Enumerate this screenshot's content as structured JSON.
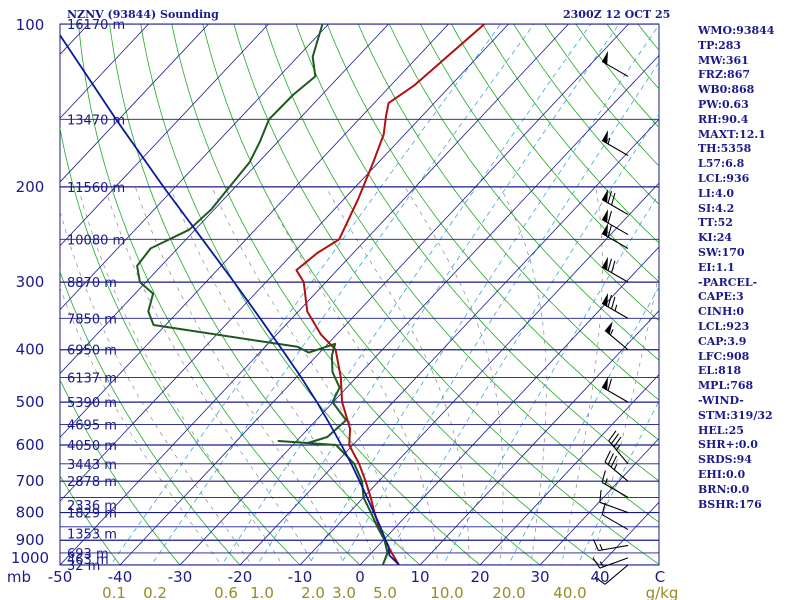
{
  "header": {
    "station": "NZNV (93844) Sounding",
    "time": "2300Z 12 OCT 25"
  },
  "stats": [
    "WMO:93844",
    "TP:283",
    "MW:361",
    "FRZ:867",
    "WB0:868",
    "PW:0.63",
    "RH:90.4",
    "MAXT:12.1",
    "TH:5358",
    "L57:6.8",
    "LCL:936",
    "LI:4.0",
    "SI:4.2",
    "TT:52",
    "KI:24",
    "SW:170",
    "EI:1.1",
    "-PARCEL-",
    "CAPE:3",
    "CINH:0",
    "LCL:923",
    "CAP:3.9",
    "LFC:908",
    "EL:818",
    "MPL:768",
    "-WIND-",
    "STM:319/32",
    "HEL:25",
    "SHR+:0.0",
    "SRDS:94",
    "EHI:0.0",
    "BRN:0.0",
    "BSHR:176"
  ],
  "colors": {
    "isobar": "#1a1a8c",
    "isotherm": "#1a1a8c",
    "dry_adiabat": "#22aa22",
    "moist_adiabat": "#8a8a8a",
    "mixing_ratio": "#3aa6d8",
    "temperature": "#b01010",
    "dewpoint": "#1e5a1e",
    "parcel": "#0a1a9c",
    "label_pressure": "#1a1a8c",
    "label_ticks": "#1a1a8c",
    "label_mixratio": "#9a8a20",
    "barb": "#000000"
  },
  "chart_data": {
    "type": "line",
    "title": "NZNV (93844) Sounding",
    "subtitle": "2300Z 12 OCT 25",
    "xlabel": "C",
    "ylabel": "mb",
    "xlim": [
      -50,
      50
    ],
    "ylim": [
      1000,
      100
    ],
    "y_scale": "log",
    "pressure_ticks": [
      100,
      200,
      300,
      400,
      500,
      600,
      700,
      800,
      900,
      1000
    ],
    "temperature_ticks": [
      "-50",
      "-40",
      "-30",
      "-20",
      "-10",
      "0",
      "10",
      "20",
      "30",
      "40",
      "C"
    ],
    "mixing_ratio_labels": [
      "0.1",
      "0.2",
      "0.6",
      "1.0",
      "2.0",
      "3.0",
      "5.0",
      "10.0",
      "20.0",
      "40.0",
      "g/kg"
    ],
    "mixing_ratio_values": [
      0.1,
      0.2,
      0.6,
      1.0,
      2.0,
      3.0,
      5.0,
      10.0,
      20.0,
      40.0
    ],
    "height_labels": [
      {
        "p": 1000,
        "text": "32 m"
      },
      {
        "p": 975,
        "text": "463 m"
      },
      {
        "p": 950,
        "text": "693 m"
      },
      {
        "p": 875,
        "text": "1353 m"
      },
      {
        "p": 800,
        "text": "1829 m"
      },
      {
        "p": 775,
        "text": "2336 m"
      },
      {
        "p": 700,
        "text": "2878 m"
      },
      {
        "p": 650,
        "text": "3443 m"
      },
      {
        "p": 600,
        "text": "4050 m"
      },
      {
        "p": 550,
        "text": "4695 m"
      },
      {
        "p": 500,
        "text": "5390 m"
      },
      {
        "p": 450,
        "text": "6137 m"
      },
      {
        "p": 400,
        "text": "6950 m"
      },
      {
        "p": 350,
        "text": "7850 m"
      },
      {
        "p": 300,
        "text": "8870 m"
      },
      {
        "p": 250,
        "text": "10080 m"
      },
      {
        "p": 200,
        "text": "11560 m"
      },
      {
        "p": 150,
        "text": "13470 m"
      },
      {
        "p": 100,
        "text": "16170 m"
      }
    ],
    "series": [
      {
        "name": "Temperature",
        "color": "#b01010",
        "points": [
          [
            1000,
            6.5
          ],
          [
            950,
            3.4
          ],
          [
            900,
            0.3
          ],
          [
            850,
            -2.8
          ],
          [
            800,
            -5.8
          ],
          [
            750,
            -8.8
          ],
          [
            700,
            -12.2
          ],
          [
            650,
            -16.0
          ],
          [
            600,
            -20.6
          ],
          [
            560,
            -23.0
          ],
          [
            500,
            -28.5
          ],
          [
            450,
            -32.6
          ],
          [
            400,
            -37.8
          ],
          [
            375,
            -42.6
          ],
          [
            340,
            -48.5
          ],
          [
            300,
            -53.7
          ],
          [
            285,
            -56.8
          ],
          [
            265,
            -56.0
          ],
          [
            250,
            -54.5
          ],
          [
            210,
            -57.7
          ],
          [
            180,
            -60.9
          ],
          [
            160,
            -63.5
          ],
          [
            148,
            -66.0
          ],
          [
            140,
            -67.6
          ],
          [
            130,
            -66.1
          ],
          [
            100,
            -64.0
          ]
        ]
      },
      {
        "name": "Dewpoint",
        "color": "#1e5a1e",
        "points": [
          [
            1000,
            3.8
          ],
          [
            950,
            2.7
          ],
          [
            900,
            0.2
          ],
          [
            850,
            -3.1
          ],
          [
            800,
            -6.4
          ],
          [
            750,
            -10.0
          ],
          [
            700,
            -12.8
          ],
          [
            650,
            -16.8
          ],
          [
            600,
            -22.8
          ],
          [
            590,
            -33.0
          ],
          [
            595,
            -27.8
          ],
          [
            580,
            -25.5
          ],
          [
            540,
            -25.0
          ],
          [
            500,
            -30.1
          ],
          [
            470,
            -31.2
          ],
          [
            440,
            -34.8
          ],
          [
            410,
            -37.5
          ],
          [
            390,
            -38.8
          ],
          [
            405,
            -41.8
          ],
          [
            395,
            -44.6
          ],
          [
            360,
            -72.0
          ],
          [
            340,
            -75.0
          ],
          [
            315,
            -77.0
          ],
          [
            300,
            -81.0
          ],
          [
            280,
            -84.0
          ],
          [
            260,
            -84.5
          ],
          [
            240,
            -81.0
          ],
          [
            220,
            -80.5
          ],
          [
            200,
            -81.0
          ],
          [
            180,
            -81.5
          ],
          [
            165,
            -83.0
          ],
          [
            150,
            -85.0
          ],
          [
            135,
            -84.8
          ],
          [
            125,
            -84.0
          ],
          [
            115,
            -87.5
          ],
          [
            100,
            -91.0
          ]
        ]
      },
      {
        "name": "Parcel",
        "color": "#0a1a9c",
        "points": [
          [
            1000,
            6.5
          ],
          [
            980,
            5.0
          ],
          [
            960,
            3.4
          ],
          [
            923,
            1.8
          ],
          [
            900,
            0.4
          ],
          [
            850,
            -2.6
          ],
          [
            800,
            -5.9
          ],
          [
            750,
            -9.4
          ],
          [
            700,
            -13.2
          ],
          [
            650,
            -17.3
          ],
          [
            600,
            -21.9
          ],
          [
            550,
            -27.0
          ],
          [
            500,
            -32.7
          ],
          [
            450,
            -39.2
          ],
          [
            400,
            -46.7
          ],
          [
            350,
            -55.3
          ],
          [
            300,
            -65.3
          ],
          [
            250,
            -77.3
          ],
          [
            200,
            -92.0
          ],
          [
            150,
            -110.5
          ],
          [
            100,
            -136.0
          ]
        ]
      }
    ],
    "wind_barbs": [
      {
        "p": 1000,
        "dir": 230,
        "spd": 10
      },
      {
        "p": 970,
        "dir": 250,
        "spd": 15
      },
      {
        "p": 920,
        "dir": 260,
        "spd": 15
      },
      {
        "p": 860,
        "dir": 300,
        "spd": 10
      },
      {
        "p": 800,
        "dir": 290,
        "spd": 10
      },
      {
        "p": 750,
        "dir": 300,
        "spd": 15
      },
      {
        "p": 700,
        "dir": 310,
        "spd": 35
      },
      {
        "p": 650,
        "dir": 320,
        "spd": 35
      },
      {
        "p": 500,
        "dir": 300,
        "spd": 60
      },
      {
        "p": 400,
        "dir": 310,
        "spd": 55
      },
      {
        "p": 350,
        "dir": 300,
        "spd": 75
      },
      {
        "p": 300,
        "dir": 300,
        "spd": 70
      },
      {
        "p": 260,
        "dir": 300,
        "spd": 60
      },
      {
        "p": 245,
        "dir": 300,
        "spd": 60
      },
      {
        "p": 225,
        "dir": 300,
        "spd": 70
      },
      {
        "p": 175,
        "dir": 300,
        "spd": 55
      },
      {
        "p": 125,
        "dir": 300,
        "spd": 50
      }
    ],
    "grid": true
  }
}
